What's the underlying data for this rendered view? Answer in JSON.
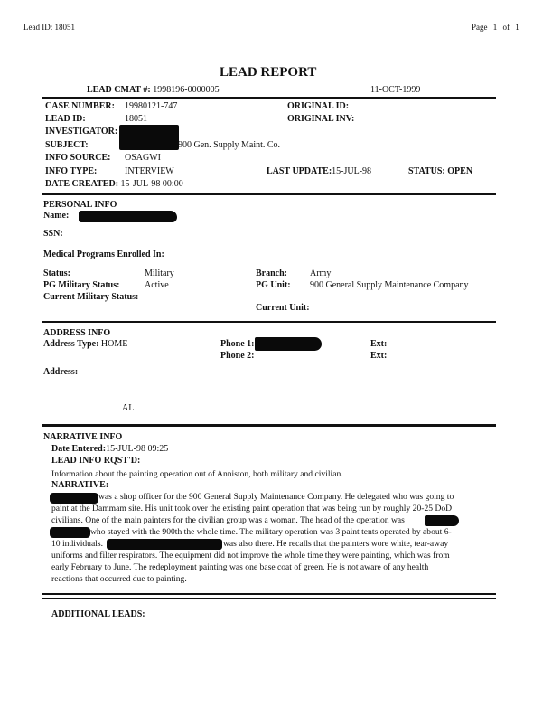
{
  "header": {
    "lead_id": "Lead ID: 18051",
    "page": "Page  1 of  1"
  },
  "title": "LEAD REPORT",
  "cmat": {
    "label": "LEAD CMAT #:",
    "value": "1998196-0000005",
    "date": "11-OCT-1999"
  },
  "case": {
    "case_number_label": "CASE NUMBER:",
    "case_number": "19980121-747",
    "lead_id_label": "LEAD ID:",
    "lead_id": "18051",
    "investigator_label": "INVESTIGATOR:",
    "subject_label": "SUBJECT:",
    "subject": "900 Gen. Supply Maint. Co.",
    "info_source_label": "INFO SOURCE:",
    "info_source": "OSAGWI",
    "info_type_label": "INFO TYPE:",
    "info_type": "INTERVIEW",
    "date_created_label": "DATE CREATED:",
    "date_created": "15-JUL-98 00:00",
    "original_id_label": "ORIGINAL ID:",
    "original_inv_label": "ORIGINAL INV:",
    "last_update_label": "LAST UPDATE:",
    "last_update": "15-JUL-98",
    "status_label": "STATUS:",
    "status": "OPEN"
  },
  "personal": {
    "heading": "PERSONAL INFO",
    "name_label": "Name:",
    "ssn_label": "SSN:",
    "medical_label": "Medical Programs Enrolled In:",
    "status_label": "Status:",
    "status": "Military",
    "pg_status_label": "PG Military Status:",
    "pg_status": "Active",
    "current_status_label": "Current Military Status:",
    "branch_label": "Branch:",
    "branch": "Army",
    "pg_unit_label": "PG Unit:",
    "pg_unit": "900 General Supply Maintenance Company",
    "current_unit_label": "Current Unit:"
  },
  "address": {
    "heading": "ADDRESS INFO",
    "type_label": "Address Type:",
    "type": "HOME",
    "phone1_label": "Phone 1:",
    "phone2_label": "Phone 2:",
    "ext1_label": "Ext:",
    "ext2_label": "Ext:",
    "address_label": "Address:",
    "state": "AL"
  },
  "narrative": {
    "heading": "NARRATIVE INFO",
    "date_entered_label": "Date Entered:",
    "date_entered": "15-JUL-98 09:25",
    "rqst_label": "LEAD INFO RQST'D:",
    "rqst": "Information about the painting operation out of Anniston, both military and civilian.",
    "narrative_label": "NARRATIVE:",
    "lines": [
      "was a shop officer for the 900 General Supply Maintenance Company.  He delegated who was going to",
      "paint at the Dammam site.  His unit took over the existing paint operation that was being run by roughly 20-25 DoD",
      "civilians.  One of the main painters for the civilian group was a woman.  The head of the operation was",
      "who stayed with the 900th the whole time.  The military operation was 3 paint tents operated by about 6-",
      "10 individuals.",
      "was also there.  He recalls that the painters wore white, tear-away",
      "uniforms and filter respirators.  The equipment did not improve the whole time they were painting, which was from",
      "early February to June.  The redeployment painting was one base coat of green.  He is not aware of any health",
      "reactions that occurred due to painting."
    ]
  },
  "additional_leads_label": "ADDITIONAL LEADS:"
}
